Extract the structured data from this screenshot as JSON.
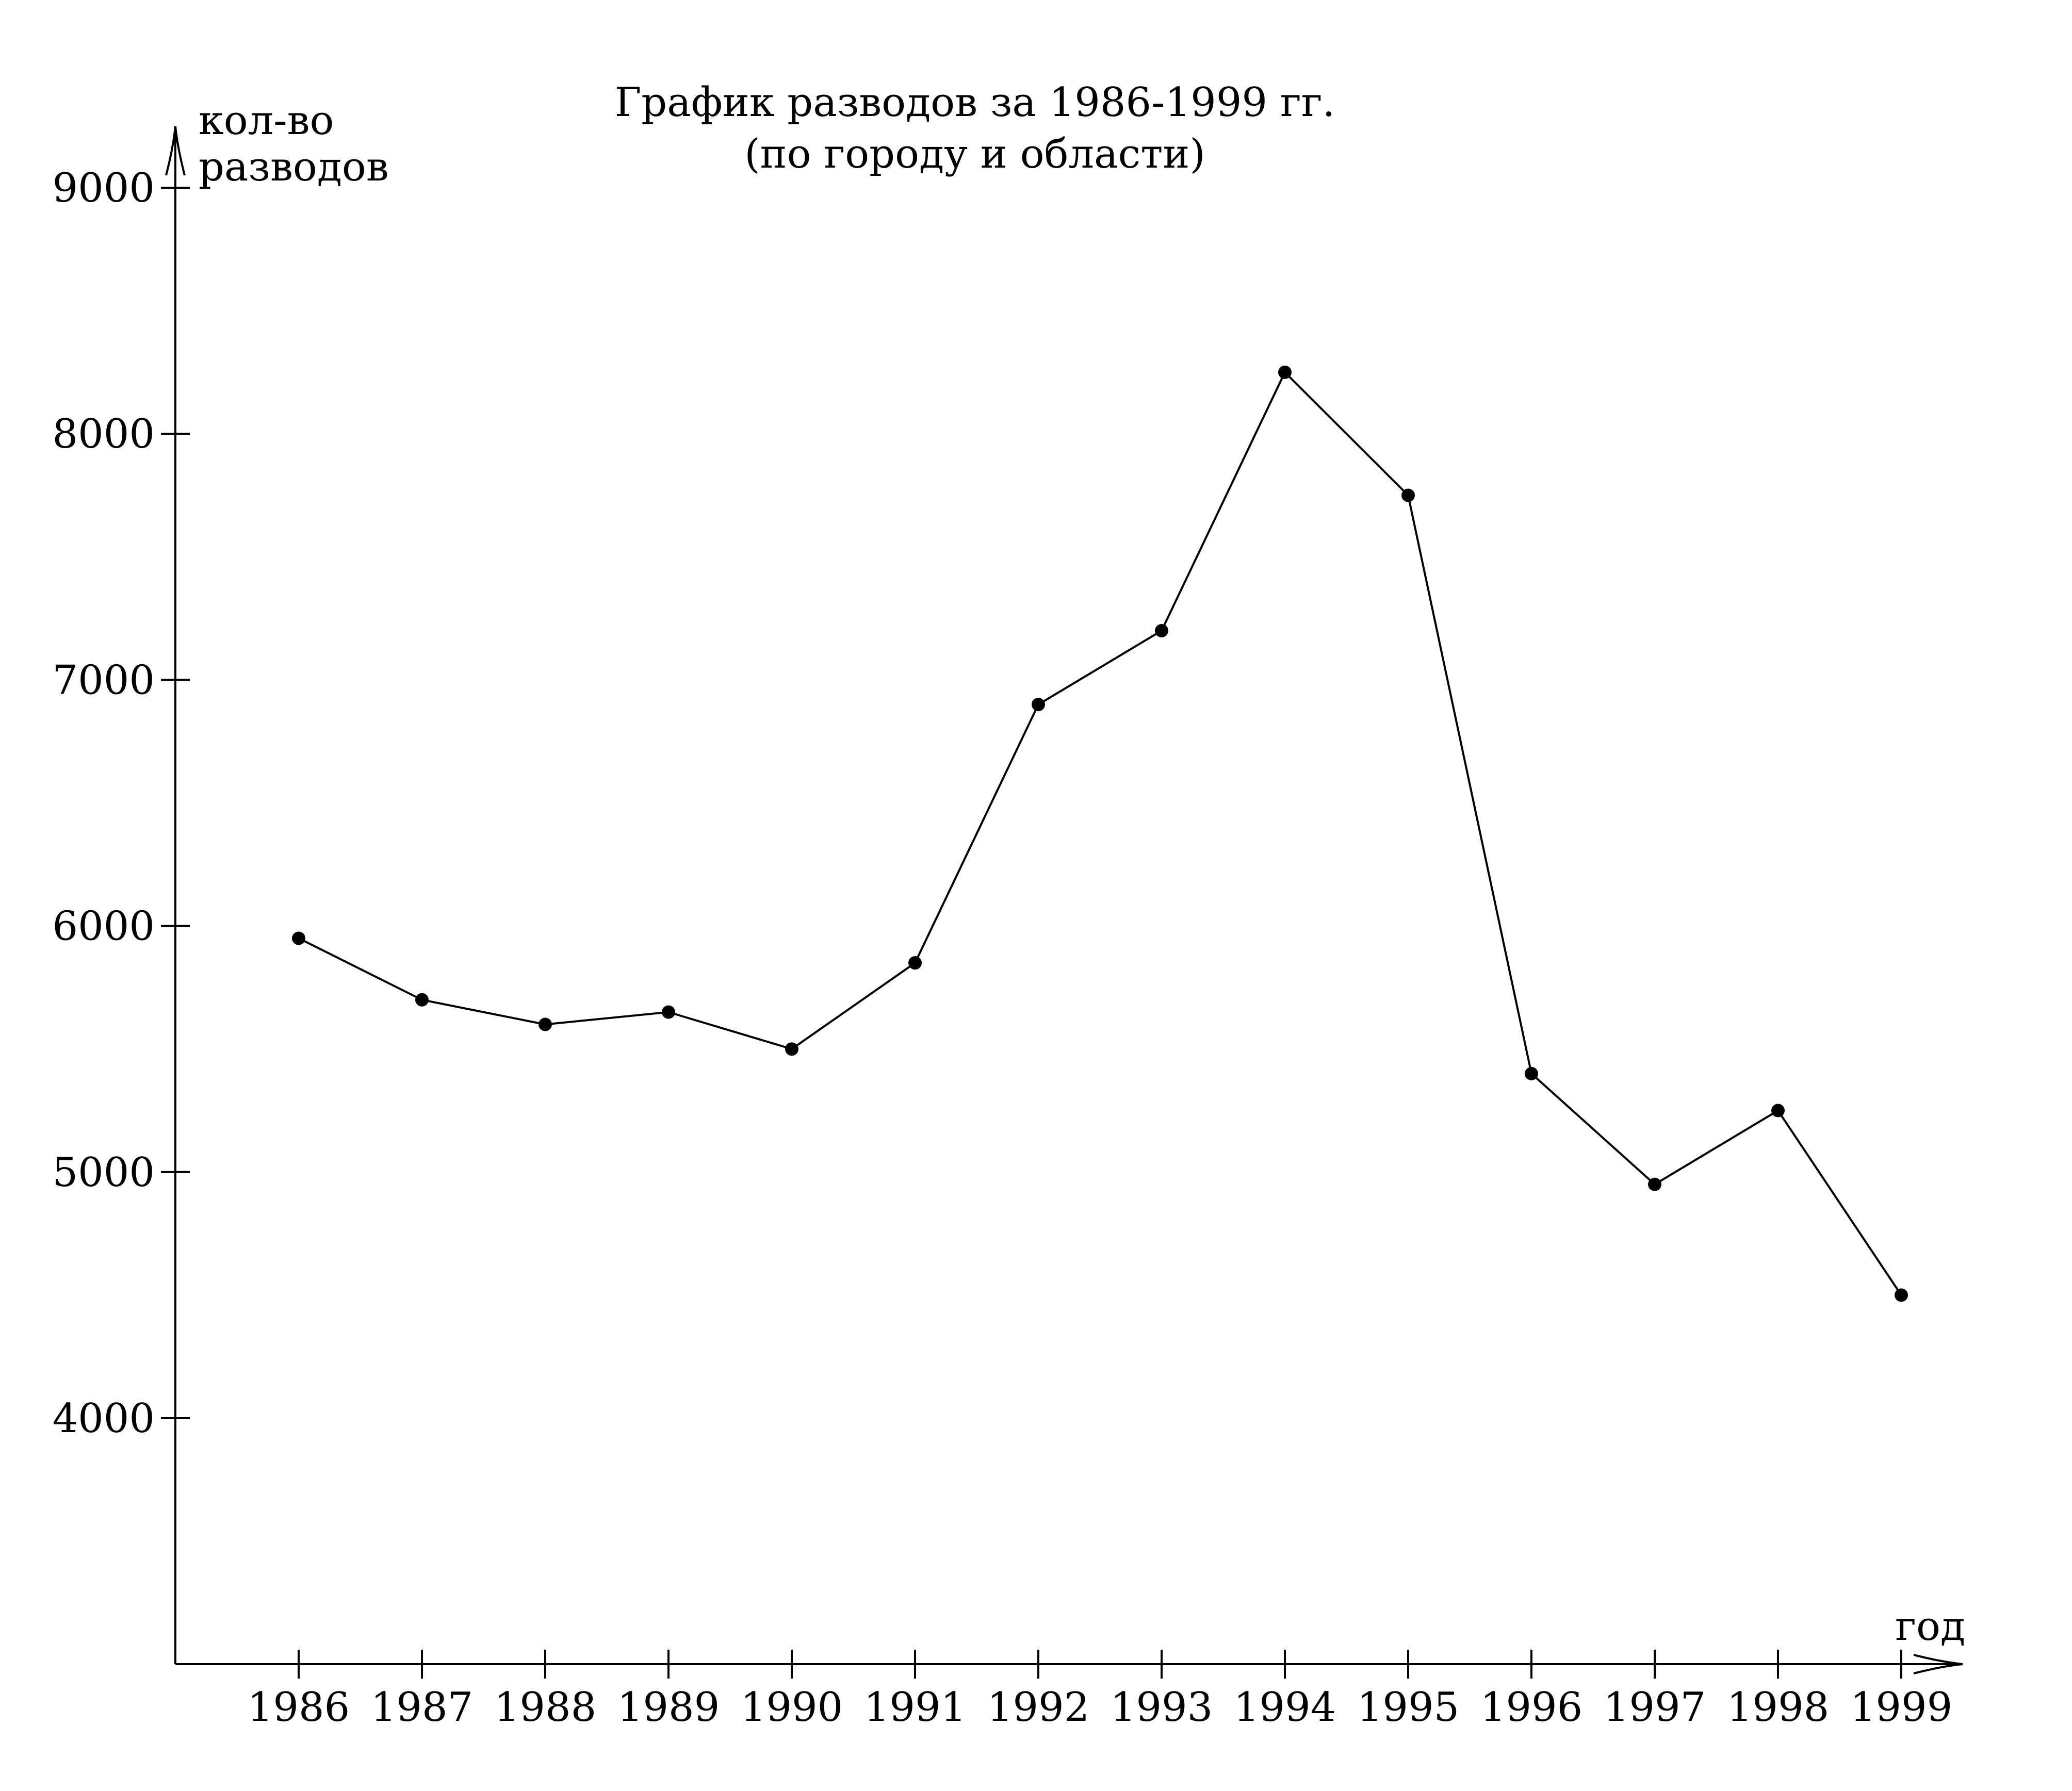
{
  "chart_data": {
    "type": "line",
    "title": "График разводов за 1986-1999 гг.",
    "subtitle": "(по городу и области)",
    "ylabel_line1": "кол-во",
    "ylabel_line2": "разводов",
    "xlabel": "год",
    "ylim": [
      3000,
      9000
    ],
    "yticks": [
      4000,
      5000,
      6000,
      7000,
      8000,
      9000
    ],
    "grid": false,
    "categories": [
      "1986",
      "1987",
      "1988",
      "1989",
      "1990",
      "1991",
      "1992",
      "1993",
      "1994",
      "1995",
      "1996",
      "1997",
      "1998",
      "1999"
    ],
    "values": [
      5950,
      5700,
      5600,
      5650,
      5500,
      5850,
      6900,
      7200,
      8250,
      7750,
      5400,
      4950,
      5250,
      4500
    ]
  }
}
